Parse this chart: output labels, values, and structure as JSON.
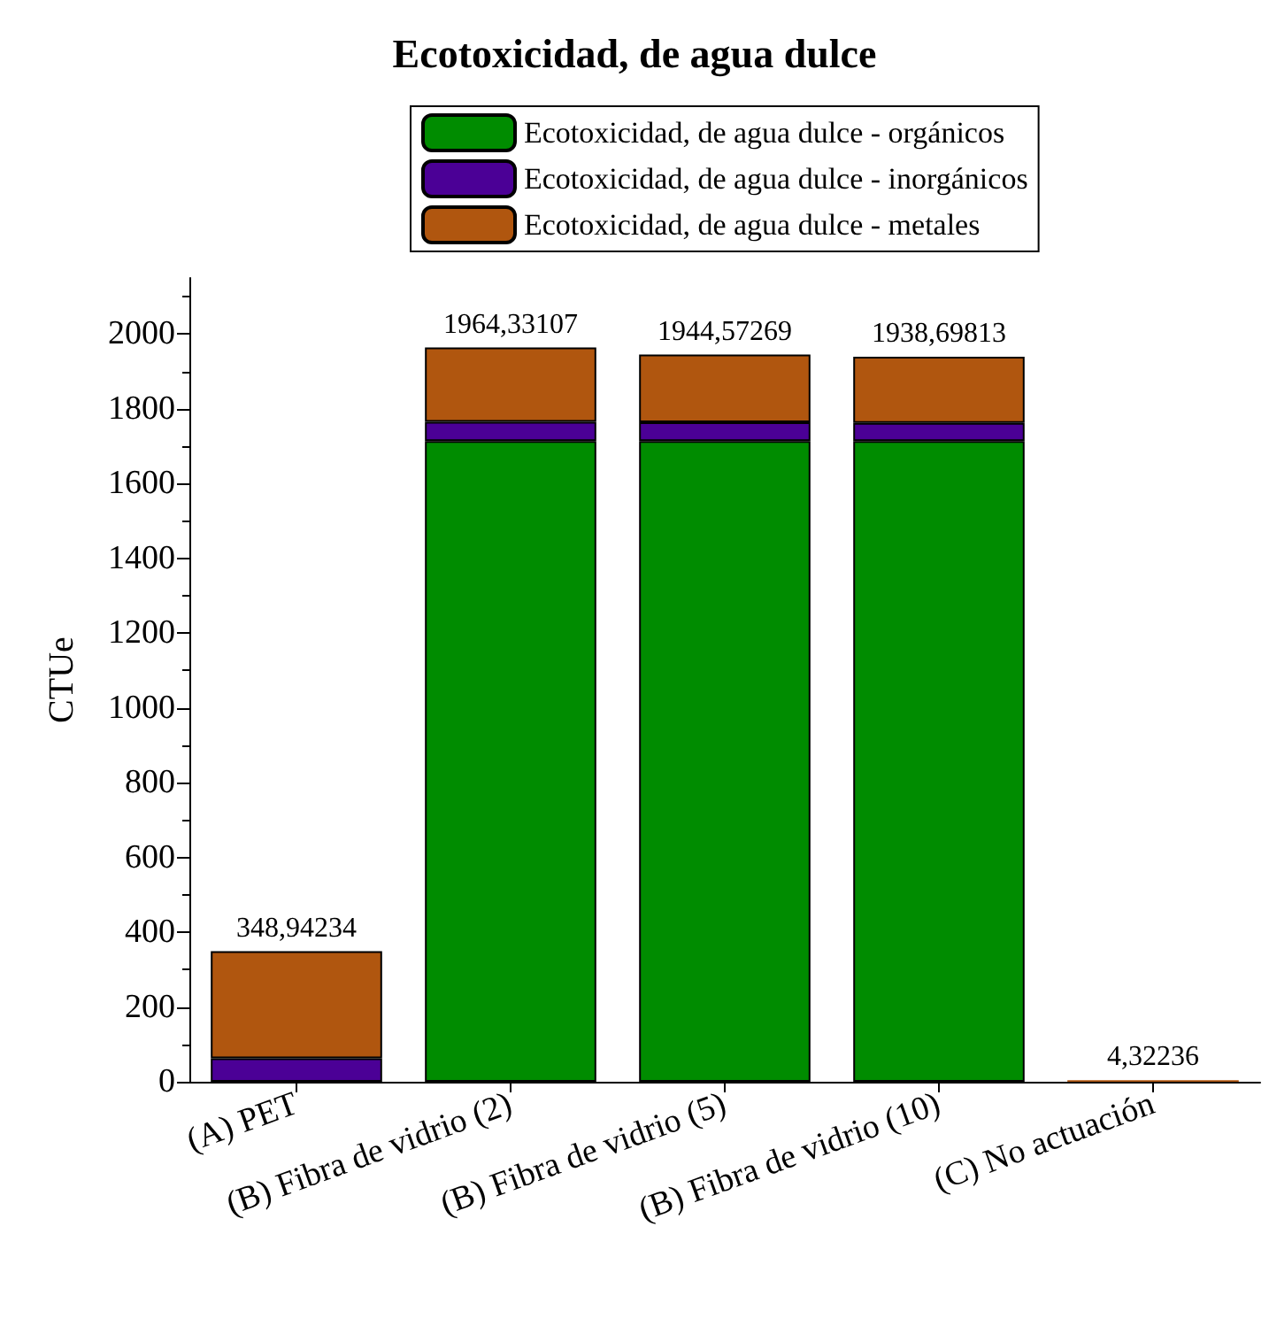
{
  "chart_data": {
    "type": "bar",
    "title": "Ecotoxicidad, de agua dulce",
    "ylabel": "CTUe",
    "categories": [
      "(A) PET",
      "(B) Fibra de vidrio (2)",
      "(B) Fibra de vidrio (5)",
      "(B) Fibra de vidrio (10)",
      "(C) No actuación"
    ],
    "series": [
      {
        "name": "Ecotoxicidad, de agua dulce - orgánicos",
        "color": "#008c00",
        "values": [
          0,
          1714,
          1714,
          1714,
          0
        ]
      },
      {
        "name": "Ecotoxicidad, de agua dulce - inorgánicos",
        "color": "#4b0096",
        "values": [
          63,
          51,
          50,
          48,
          0
        ]
      },
      {
        "name": "Ecotoxicidad, de agua dulce - metales",
        "color": "#b0560f",
        "values": [
          286,
          199,
          181,
          177,
          4
        ]
      }
    ],
    "stacked": true,
    "totals": [
      "348,94234",
      "1964,33107",
      "1944,57269",
      "1938,69813",
      "4,32236"
    ],
    "ylim": [
      0,
      2150
    ],
    "yticks": [
      0,
      200,
      400,
      600,
      800,
      1000,
      1200,
      1400,
      1600,
      1800,
      2000
    ],
    "grid": false,
    "legend": "top"
  }
}
